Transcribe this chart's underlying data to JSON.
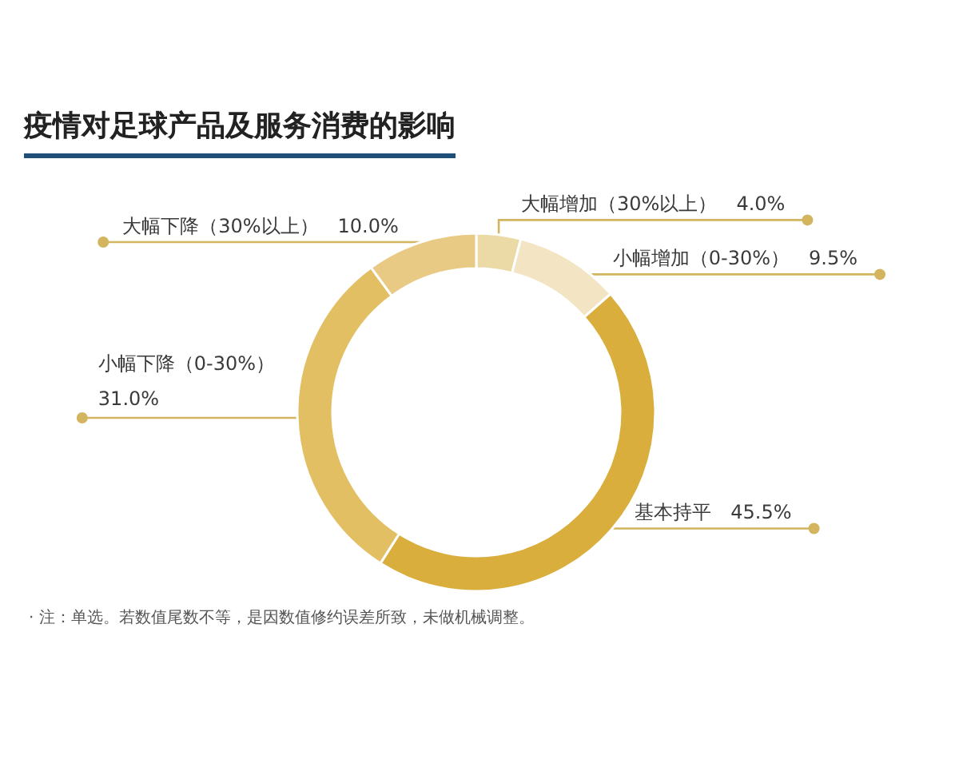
{
  "chart_data": {
    "type": "donut",
    "title": "疫情对足球产品及服务消费的影响",
    "categories": [
      "大幅增加（30%以上）",
      "小幅增加（0-30%）",
      "基本持平",
      "小幅下降（0-30%）",
      "大幅下降（30%以上）"
    ],
    "values": [
      4.0,
      9.5,
      45.5,
      31.0,
      10.0
    ],
    "value_labels": [
      "4.0%",
      "9.5%",
      "45.5%",
      "31.0%",
      "10.0%"
    ],
    "colors": [
      "#ebd9a6",
      "#f3e5c3",
      "#d9ae3c",
      "#e2bf62",
      "#e8ca85"
    ],
    "annotations": [
      "· 注：单选。若数值尾数不等，是因数值修约误差所致，未做机械调整。"
    ]
  }
}
